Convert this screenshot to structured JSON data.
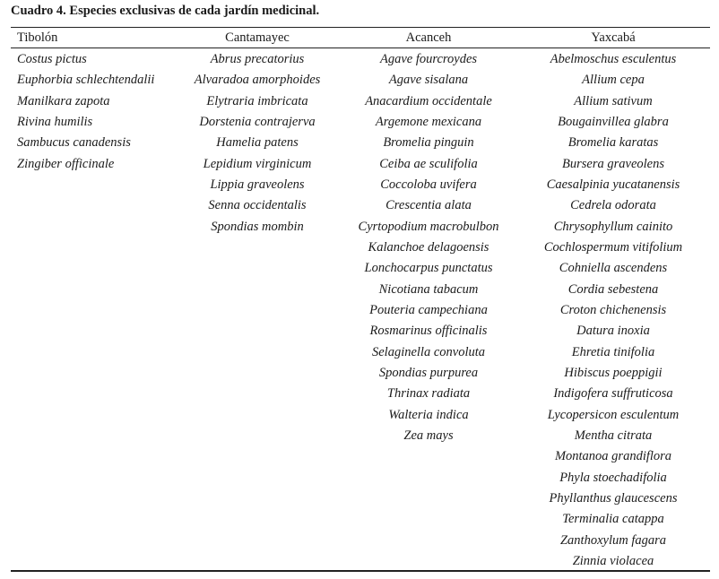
{
  "title": "Cuadro 4. Especies exclusivas de cada jardín medicinal.",
  "columns": [
    {
      "header": "Tibolón",
      "species": [
        "Costus pictus",
        "Euphorbia schlechtendalii",
        "Manilkara zapota",
        "Rivina humilis",
        "Sambucus canadensis",
        "Zingiber officinale"
      ]
    },
    {
      "header": "Cantamayec",
      "species": [
        "Abrus precatorius",
        "Alvaradoa amorphoides",
        "Elytraria imbricata",
        "Dorstenia contrajerva",
        "Hamelia patens",
        "Lepidium virginicum",
        "Lippia graveolens",
        "Senna occidentalis",
        "Spondias mombin"
      ]
    },
    {
      "header": "Acanceh",
      "species": [
        "Agave fourcroydes",
        "Agave sisalana",
        "Anacardium occidentale",
        "Argemone mexicana",
        "Bromelia pinguin",
        "Ceiba ae sculifolia",
        "Coccoloba uvifera",
        "Crescentia alata",
        "Cyrtopodium macrobulbon",
        "Kalanchoe delagoensis",
        "Lonchocarpus punctatus",
        "Nicotiana tabacum",
        "Pouteria campechiana",
        "Rosmarinus officinalis",
        "Selaginella convoluta",
        "Spondias purpurea",
        "Thrinax radiata",
        "Walteria indica",
        "Zea mays"
      ]
    },
    {
      "header": "Yaxcabá",
      "species": [
        "Abelmoschus esculentus",
        "Allium cepa",
        "Allium sativum",
        "Bougainvillea glabra",
        "Bromelia karatas",
        "Bursera graveolens",
        "Caesalpinia yucatanensis",
        "Cedrela odorata",
        "Chrysophyllum cainito",
        "Cochlospermum vitifolium",
        "Cohniella ascendens",
        "Cordia sebestena",
        "Croton chichenensis",
        "Datura inoxia",
        "Ehretia tinifolia",
        "Hibiscus poeppigii",
        "Indigofera suffruticosa",
        "Lycopersicon esculentum",
        "Mentha citrata",
        "Montanoa grandiflora",
        "Phyla stoechadifolia",
        "Phyllanthus glaucescens",
        "Terminalia catappa",
        "Zanthoxylum fagara",
        "Zinnia violacea"
      ]
    }
  ]
}
